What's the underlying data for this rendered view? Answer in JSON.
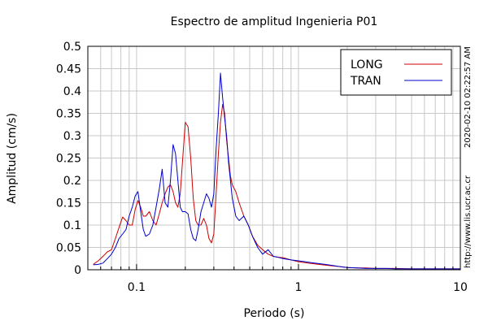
{
  "chart_data": {
    "type": "line",
    "title": "Espectro de amplitud Ingenieria P01",
    "xlabel": "Periodo (s)",
    "ylabel": "Amplitud (cm/s)",
    "xscale": "log",
    "xlim": [
      0.05,
      10
    ],
    "ylim": [
      0,
      0.5
    ],
    "xticks": [
      {
        "value": 0.1,
        "label": "0.1"
      },
      {
        "value": 1,
        "label": "1"
      },
      {
        "value": 10,
        "label": "10"
      }
    ],
    "yticks": [
      {
        "value": 0,
        "label": "0"
      },
      {
        "value": 0.05,
        "label": "0.05"
      },
      {
        "value": 0.1,
        "label": "0.1"
      },
      {
        "value": 0.15,
        "label": "0.15"
      },
      {
        "value": 0.2,
        "label": "0.2"
      },
      {
        "value": 0.25,
        "label": "0.25"
      },
      {
        "value": 0.3,
        "label": "0.3"
      },
      {
        "value": 0.35,
        "label": "0.35"
      },
      {
        "value": 0.4,
        "label": "0.4"
      },
      {
        "value": 0.45,
        "label": "0.45"
      },
      {
        "value": 0.5,
        "label": "0.5"
      }
    ],
    "grid": true,
    "legend_position": "top-right",
    "series": [
      {
        "name": "LONG",
        "color": "#cc0000",
        "x": [
          0.054,
          0.058,
          0.062,
          0.066,
          0.07,
          0.074,
          0.078,
          0.082,
          0.086,
          0.09,
          0.094,
          0.098,
          0.102,
          0.106,
          0.11,
          0.114,
          0.12,
          0.126,
          0.132,
          0.138,
          0.144,
          0.15,
          0.156,
          0.162,
          0.168,
          0.174,
          0.18,
          0.186,
          0.192,
          0.2,
          0.208,
          0.216,
          0.224,
          0.232,
          0.24,
          0.25,
          0.26,
          0.27,
          0.28,
          0.29,
          0.3,
          0.31,
          0.32,
          0.33,
          0.34,
          0.35,
          0.36,
          0.37,
          0.38,
          0.39,
          0.41,
          0.43,
          0.46,
          0.49,
          0.52,
          0.56,
          0.6,
          0.65,
          0.7,
          0.75,
          0.8,
          0.9,
          1.0,
          1.1,
          1.2,
          1.4,
          1.6,
          1.8,
          2.0,
          2.3,
          2.6,
          3.0,
          3.5,
          4.0,
          5.0,
          6.0,
          7.0,
          8.0,
          9.0,
          10.0
        ],
        "y": [
          0.012,
          0.02,
          0.03,
          0.04,
          0.045,
          0.07,
          0.095,
          0.118,
          0.11,
          0.1,
          0.1,
          0.135,
          0.155,
          0.14,
          0.12,
          0.12,
          0.13,
          0.11,
          0.1,
          0.125,
          0.15,
          0.17,
          0.185,
          0.19,
          0.175,
          0.15,
          0.14,
          0.17,
          0.24,
          0.33,
          0.32,
          0.25,
          0.16,
          0.11,
          0.1,
          0.1,
          0.115,
          0.1,
          0.07,
          0.06,
          0.08,
          0.17,
          0.26,
          0.33,
          0.37,
          0.35,
          0.29,
          0.25,
          0.21,
          0.19,
          0.175,
          0.15,
          0.12,
          0.1,
          0.075,
          0.055,
          0.045,
          0.035,
          0.03,
          0.028,
          0.027,
          0.022,
          0.018,
          0.016,
          0.014,
          0.011,
          0.009,
          0.007,
          0.005,
          0.004,
          0.004,
          0.003,
          0.003,
          0.003,
          0.002,
          0.002,
          0.002,
          0.002,
          0.002,
          0.002
        ]
      },
      {
        "name": "TRAN",
        "color": "#0000cc",
        "x": [
          0.054,
          0.058,
          0.062,
          0.066,
          0.07,
          0.074,
          0.078,
          0.082,
          0.086,
          0.09,
          0.094,
          0.098,
          0.102,
          0.106,
          0.11,
          0.114,
          0.12,
          0.126,
          0.132,
          0.138,
          0.144,
          0.15,
          0.156,
          0.162,
          0.168,
          0.174,
          0.18,
          0.186,
          0.192,
          0.2,
          0.208,
          0.216,
          0.224,
          0.232,
          0.24,
          0.25,
          0.26,
          0.27,
          0.28,
          0.29,
          0.3,
          0.31,
          0.32,
          0.33,
          0.34,
          0.35,
          0.36,
          0.37,
          0.38,
          0.39,
          0.41,
          0.43,
          0.46,
          0.49,
          0.52,
          0.56,
          0.6,
          0.65,
          0.7,
          0.75,
          0.8,
          0.9,
          1.0,
          1.1,
          1.2,
          1.4,
          1.6,
          1.8,
          2.0,
          2.3,
          2.6,
          3.0,
          3.5,
          4.0,
          5.0,
          6.0,
          7.0,
          8.0,
          9.0,
          10.0
        ],
        "y": [
          0.011,
          0.012,
          0.015,
          0.025,
          0.035,
          0.05,
          0.07,
          0.08,
          0.09,
          0.12,
          0.14,
          0.165,
          0.175,
          0.13,
          0.09,
          0.075,
          0.08,
          0.1,
          0.14,
          0.18,
          0.225,
          0.15,
          0.14,
          0.2,
          0.28,
          0.26,
          0.2,
          0.14,
          0.13,
          0.13,
          0.125,
          0.09,
          0.07,
          0.065,
          0.09,
          0.13,
          0.15,
          0.17,
          0.16,
          0.14,
          0.17,
          0.27,
          0.35,
          0.44,
          0.385,
          0.34,
          0.3,
          0.24,
          0.2,
          0.16,
          0.12,
          0.11,
          0.12,
          0.1,
          0.075,
          0.05,
          0.035,
          0.045,
          0.03,
          0.028,
          0.025,
          0.022,
          0.02,
          0.018,
          0.016,
          0.013,
          0.01,
          0.007,
          0.005,
          0.004,
          0.003,
          0.003,
          0.003,
          0.002,
          0.002,
          0.002,
          0.002,
          0.002,
          0.002,
          0.002
        ]
      }
    ],
    "annotations": [
      {
        "text": "2020-02-10 02:22:57 AM",
        "orientation": "vertical"
      },
      {
        "text": "http://www.lis.ucr.ac.cr",
        "orientation": "vertical"
      }
    ]
  }
}
